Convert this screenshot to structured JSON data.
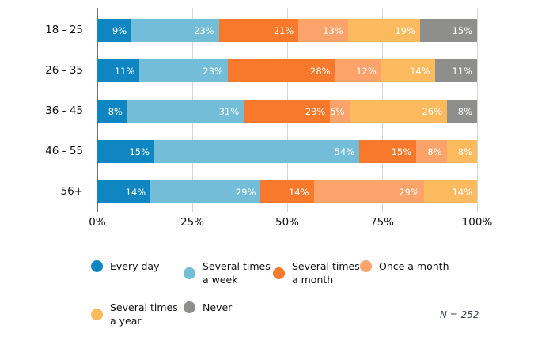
{
  "chart_data": {
    "type": "bar",
    "stacked": true,
    "orientation": "horizontal",
    "title": "",
    "categories": [
      "18 - 25",
      "26 - 35",
      "36 - 45",
      "46 - 55",
      "56+"
    ],
    "series": [
      {
        "name": "Every day",
        "color": "#0f86c1",
        "values": [
          9,
          11,
          8,
          15,
          14
        ]
      },
      {
        "name": "Several times a week",
        "color": "#74bdd9",
        "values": [
          23,
          23,
          31,
          54,
          29
        ]
      },
      {
        "name": "Several times a month",
        "color": "#f8792b",
        "values": [
          21,
          28,
          23,
          15,
          14
        ]
      },
      {
        "name": "Once a month",
        "color": "#fba36b",
        "values": [
          13,
          12,
          5,
          8,
          29
        ]
      },
      {
        "name": "Several times a year",
        "color": "#fcba5f",
        "values": [
          19,
          14,
          26,
          8,
          14
        ]
      },
      {
        "name": "Never",
        "color": "#8e8e8c",
        "values": [
          15,
          11,
          8,
          0,
          0
        ]
      }
    ],
    "legend_labels": [
      [
        "Every day"
      ],
      [
        "Several times",
        "a week"
      ],
      [
        "Several times",
        "a month"
      ],
      [
        "Once a month"
      ],
      [
        "Several times",
        "a year"
      ],
      [
        "Never"
      ]
    ],
    "x_ticks": [
      "0%",
      "25%",
      "50%",
      "75%",
      "100%"
    ],
    "xlim": [
      0,
      100
    ],
    "grid": true,
    "legend_position": "bottom",
    "note": "N = 252",
    "value_suffix": "%"
  }
}
